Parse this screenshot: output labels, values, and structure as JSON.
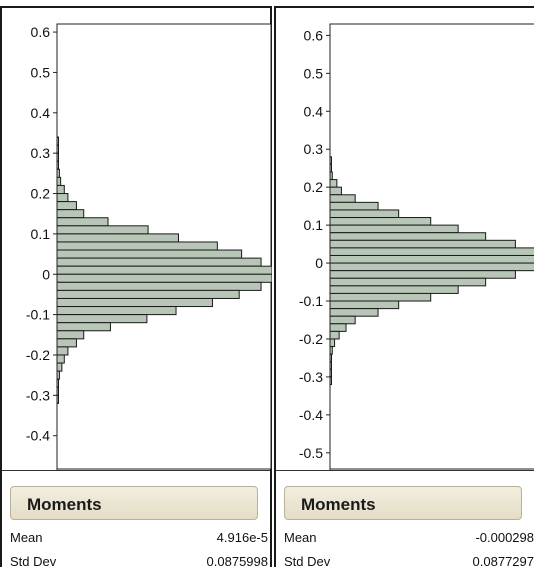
{
  "panels": [
    {
      "moments_title": "Moments",
      "stats": [
        {
          "label": "Mean",
          "value": "4.916e-5"
        },
        {
          "label": "Std Dev",
          "value": "0.0875998"
        }
      ]
    },
    {
      "moments_title": "Moments",
      "stats": [
        {
          "label": "Mean",
          "value": "-0.000298"
        },
        {
          "label": "Std Dev",
          "value": "0.0877297"
        }
      ]
    }
  ],
  "colors": {
    "bar_fill": "#b7c6b6",
    "bar_stroke": "#1a1a1a",
    "moments_bg": "#ebe6d3"
  },
  "chart_data": [
    {
      "type": "bar",
      "orientation": "horizontal",
      "y_ticks": [
        "0.6",
        "0.5",
        "0.4",
        "0.3",
        "0.2",
        "0.1",
        "0",
        "-0.1",
        "-0.2",
        "-0.3",
        "-0.4"
      ],
      "ylim": [
        -0.48,
        0.62
      ],
      "bin_width": 0.02,
      "bins": [
        {
          "center": 0.33,
          "value": 1
        },
        {
          "center": 0.31,
          "value": 1
        },
        {
          "center": 0.29,
          "value": 1
        },
        {
          "center": 0.27,
          "value": 1
        },
        {
          "center": 0.25,
          "value": 2
        },
        {
          "center": 0.23,
          "value": 3
        },
        {
          "center": 0.21,
          "value": 6
        },
        {
          "center": 0.19,
          "value": 9
        },
        {
          "center": 0.17,
          "value": 16
        },
        {
          "center": 0.15,
          "value": 22
        },
        {
          "center": 0.13,
          "value": 42
        },
        {
          "center": 0.11,
          "value": 75
        },
        {
          "center": 0.09,
          "value": 100
        },
        {
          "center": 0.07,
          "value": 132
        },
        {
          "center": 0.05,
          "value": 152
        },
        {
          "center": 0.03,
          "value": 168
        },
        {
          "center": 0.01,
          "value": 177
        },
        {
          "center": -0.01,
          "value": 177
        },
        {
          "center": -0.03,
          "value": 168
        },
        {
          "center": -0.05,
          "value": 150
        },
        {
          "center": -0.07,
          "value": 128
        },
        {
          "center": -0.09,
          "value": 98
        },
        {
          "center": -0.11,
          "value": 74
        },
        {
          "center": -0.13,
          "value": 44
        },
        {
          "center": -0.15,
          "value": 22
        },
        {
          "center": -0.17,
          "value": 16
        },
        {
          "center": -0.19,
          "value": 9
        },
        {
          "center": -0.21,
          "value": 6
        },
        {
          "center": -0.23,
          "value": 4
        },
        {
          "center": -0.25,
          "value": 2
        },
        {
          "center": -0.27,
          "value": 1
        },
        {
          "center": -0.29,
          "value": 1
        },
        {
          "center": -0.31,
          "value": 1
        }
      ]
    },
    {
      "type": "bar",
      "orientation": "horizontal",
      "y_ticks": [
        "0.6",
        "0.5",
        "0.4",
        "0.3",
        "0.2",
        "0.1",
        "0",
        "-0.1",
        "-0.2",
        "-0.3",
        "-0.4",
        "-0.5"
      ],
      "ylim": [
        -0.54,
        0.63
      ],
      "bin_width": 0.02,
      "bins": [
        {
          "center": 0.27,
          "value": 1
        },
        {
          "center": 0.25,
          "value": 1
        },
        {
          "center": 0.23,
          "value": 2
        },
        {
          "center": 0.21,
          "value": 6
        },
        {
          "center": 0.19,
          "value": 10
        },
        {
          "center": 0.17,
          "value": 22
        },
        {
          "center": 0.15,
          "value": 42
        },
        {
          "center": 0.13,
          "value": 60
        },
        {
          "center": 0.11,
          "value": 88
        },
        {
          "center": 0.09,
          "value": 112
        },
        {
          "center": 0.07,
          "value": 136
        },
        {
          "center": 0.05,
          "value": 162
        },
        {
          "center": 0.03,
          "value": 180
        },
        {
          "center": 0.01,
          "value": 180
        },
        {
          "center": -0.01,
          "value": 180
        },
        {
          "center": -0.03,
          "value": 162
        },
        {
          "center": -0.05,
          "value": 136
        },
        {
          "center": -0.07,
          "value": 112
        },
        {
          "center": -0.09,
          "value": 88
        },
        {
          "center": -0.11,
          "value": 60
        },
        {
          "center": -0.13,
          "value": 42
        },
        {
          "center": -0.15,
          "value": 22
        },
        {
          "center": -0.17,
          "value": 14
        },
        {
          "center": -0.19,
          "value": 8
        },
        {
          "center": -0.21,
          "value": 4
        },
        {
          "center": -0.23,
          "value": 2
        },
        {
          "center": -0.25,
          "value": 1
        },
        {
          "center": -0.27,
          "value": 1
        },
        {
          "center": -0.29,
          "value": 1
        },
        {
          "center": -0.31,
          "value": 1
        }
      ]
    }
  ]
}
